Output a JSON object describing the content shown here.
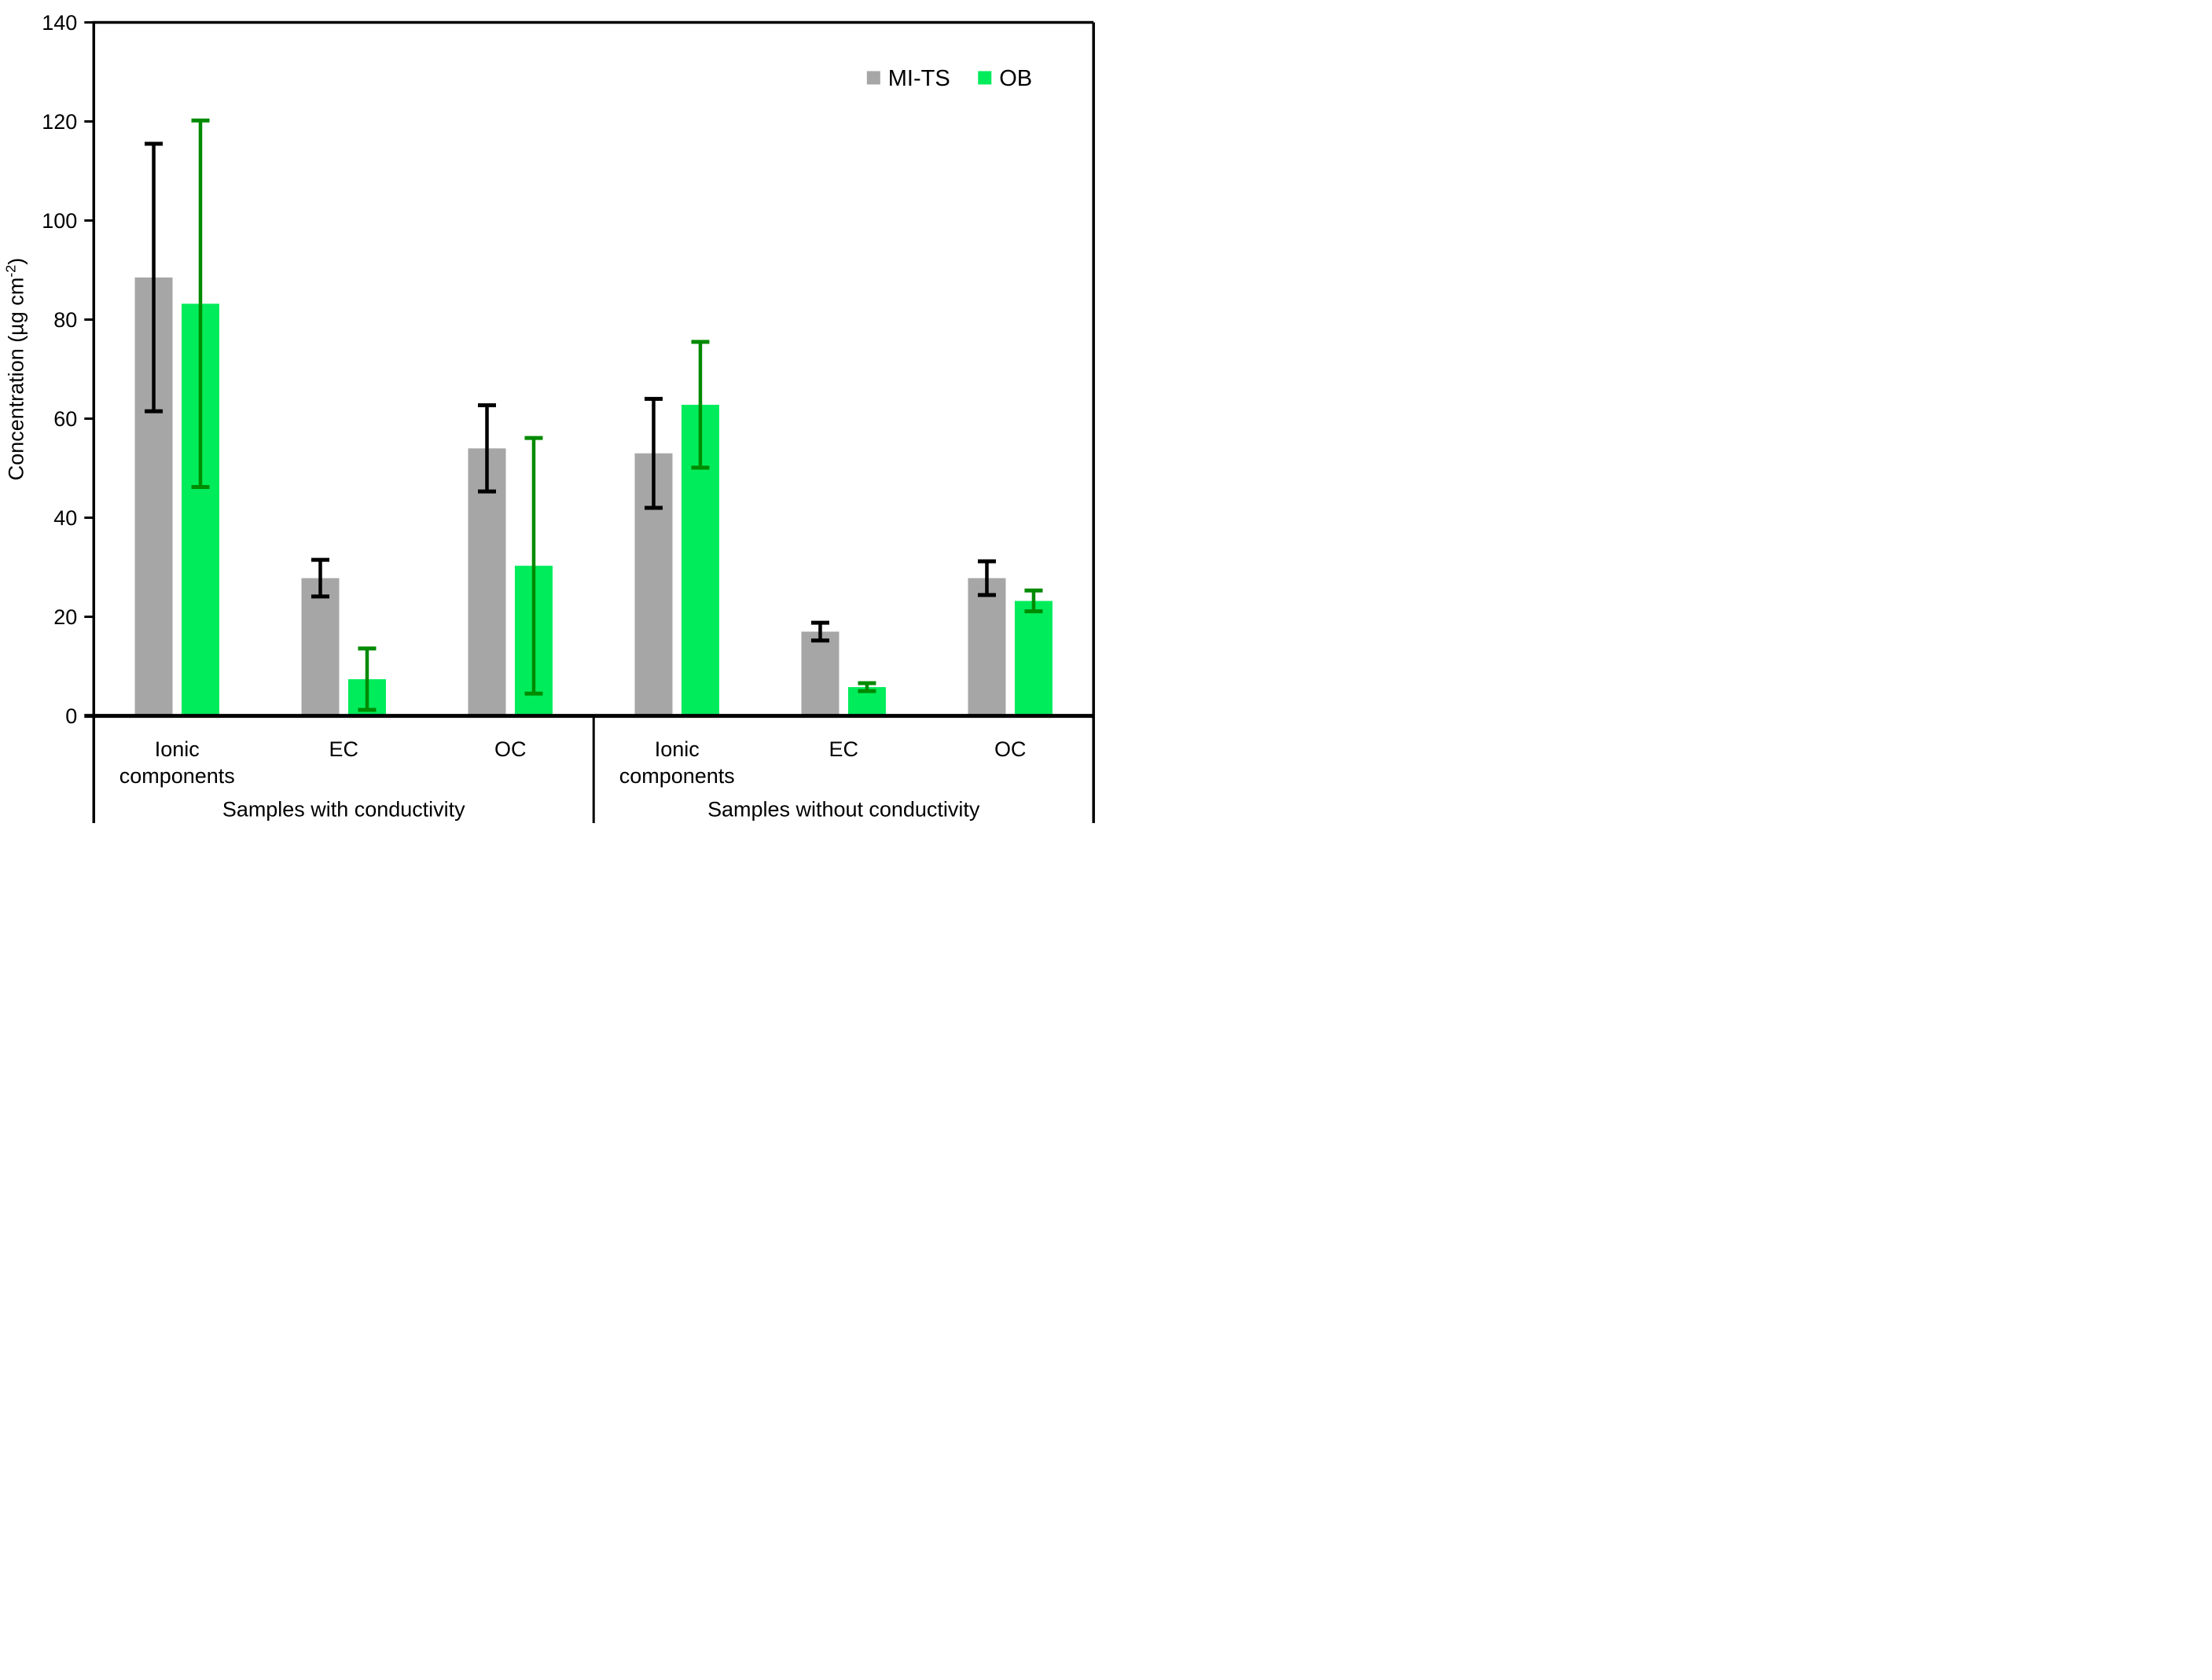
{
  "chart_data": {
    "type": "bar",
    "title": "",
    "ylabel_prefix": "Concentration (µg cm",
    "ylabel_superscript": "-2",
    "ylabel_suffix": ")",
    "ylim": [
      0,
      140
    ],
    "yticks": [
      0,
      20,
      40,
      60,
      80,
      100,
      120,
      140
    ],
    "grid": false,
    "legend_position": "top-right-inside",
    "groups": [
      {
        "label": "Samples with conductivity",
        "categories": [
          {
            "lines": [
              "Ionic",
              "components"
            ]
          },
          {
            "lines": [
              "EC"
            ]
          },
          {
            "lines": [
              "OC"
            ]
          }
        ]
      },
      {
        "label": "Samples without conductivity",
        "categories": [
          {
            "lines": [
              "Ionic",
              "components"
            ]
          },
          {
            "lines": [
              "EC"
            ]
          },
          {
            "lines": [
              "OC"
            ]
          }
        ]
      }
    ],
    "series": [
      {
        "name": "MI-TS",
        "color": "#A6A6A6",
        "error_color": "#000000",
        "values": [
          88.5,
          27.8,
          54.0,
          53.0,
          17.0,
          27.8
        ],
        "errors": [
          27.0,
          3.7,
          8.7,
          11.0,
          1.8,
          3.4
        ]
      },
      {
        "name": "OB",
        "color": "#00EC5B",
        "error_color": "#008A00",
        "values": [
          83.2,
          7.4,
          30.3,
          62.8,
          5.8,
          23.2
        ],
        "errors": [
          37.0,
          6.2,
          25.8,
          12.7,
          0.8,
          2.1
        ]
      }
    ]
  }
}
